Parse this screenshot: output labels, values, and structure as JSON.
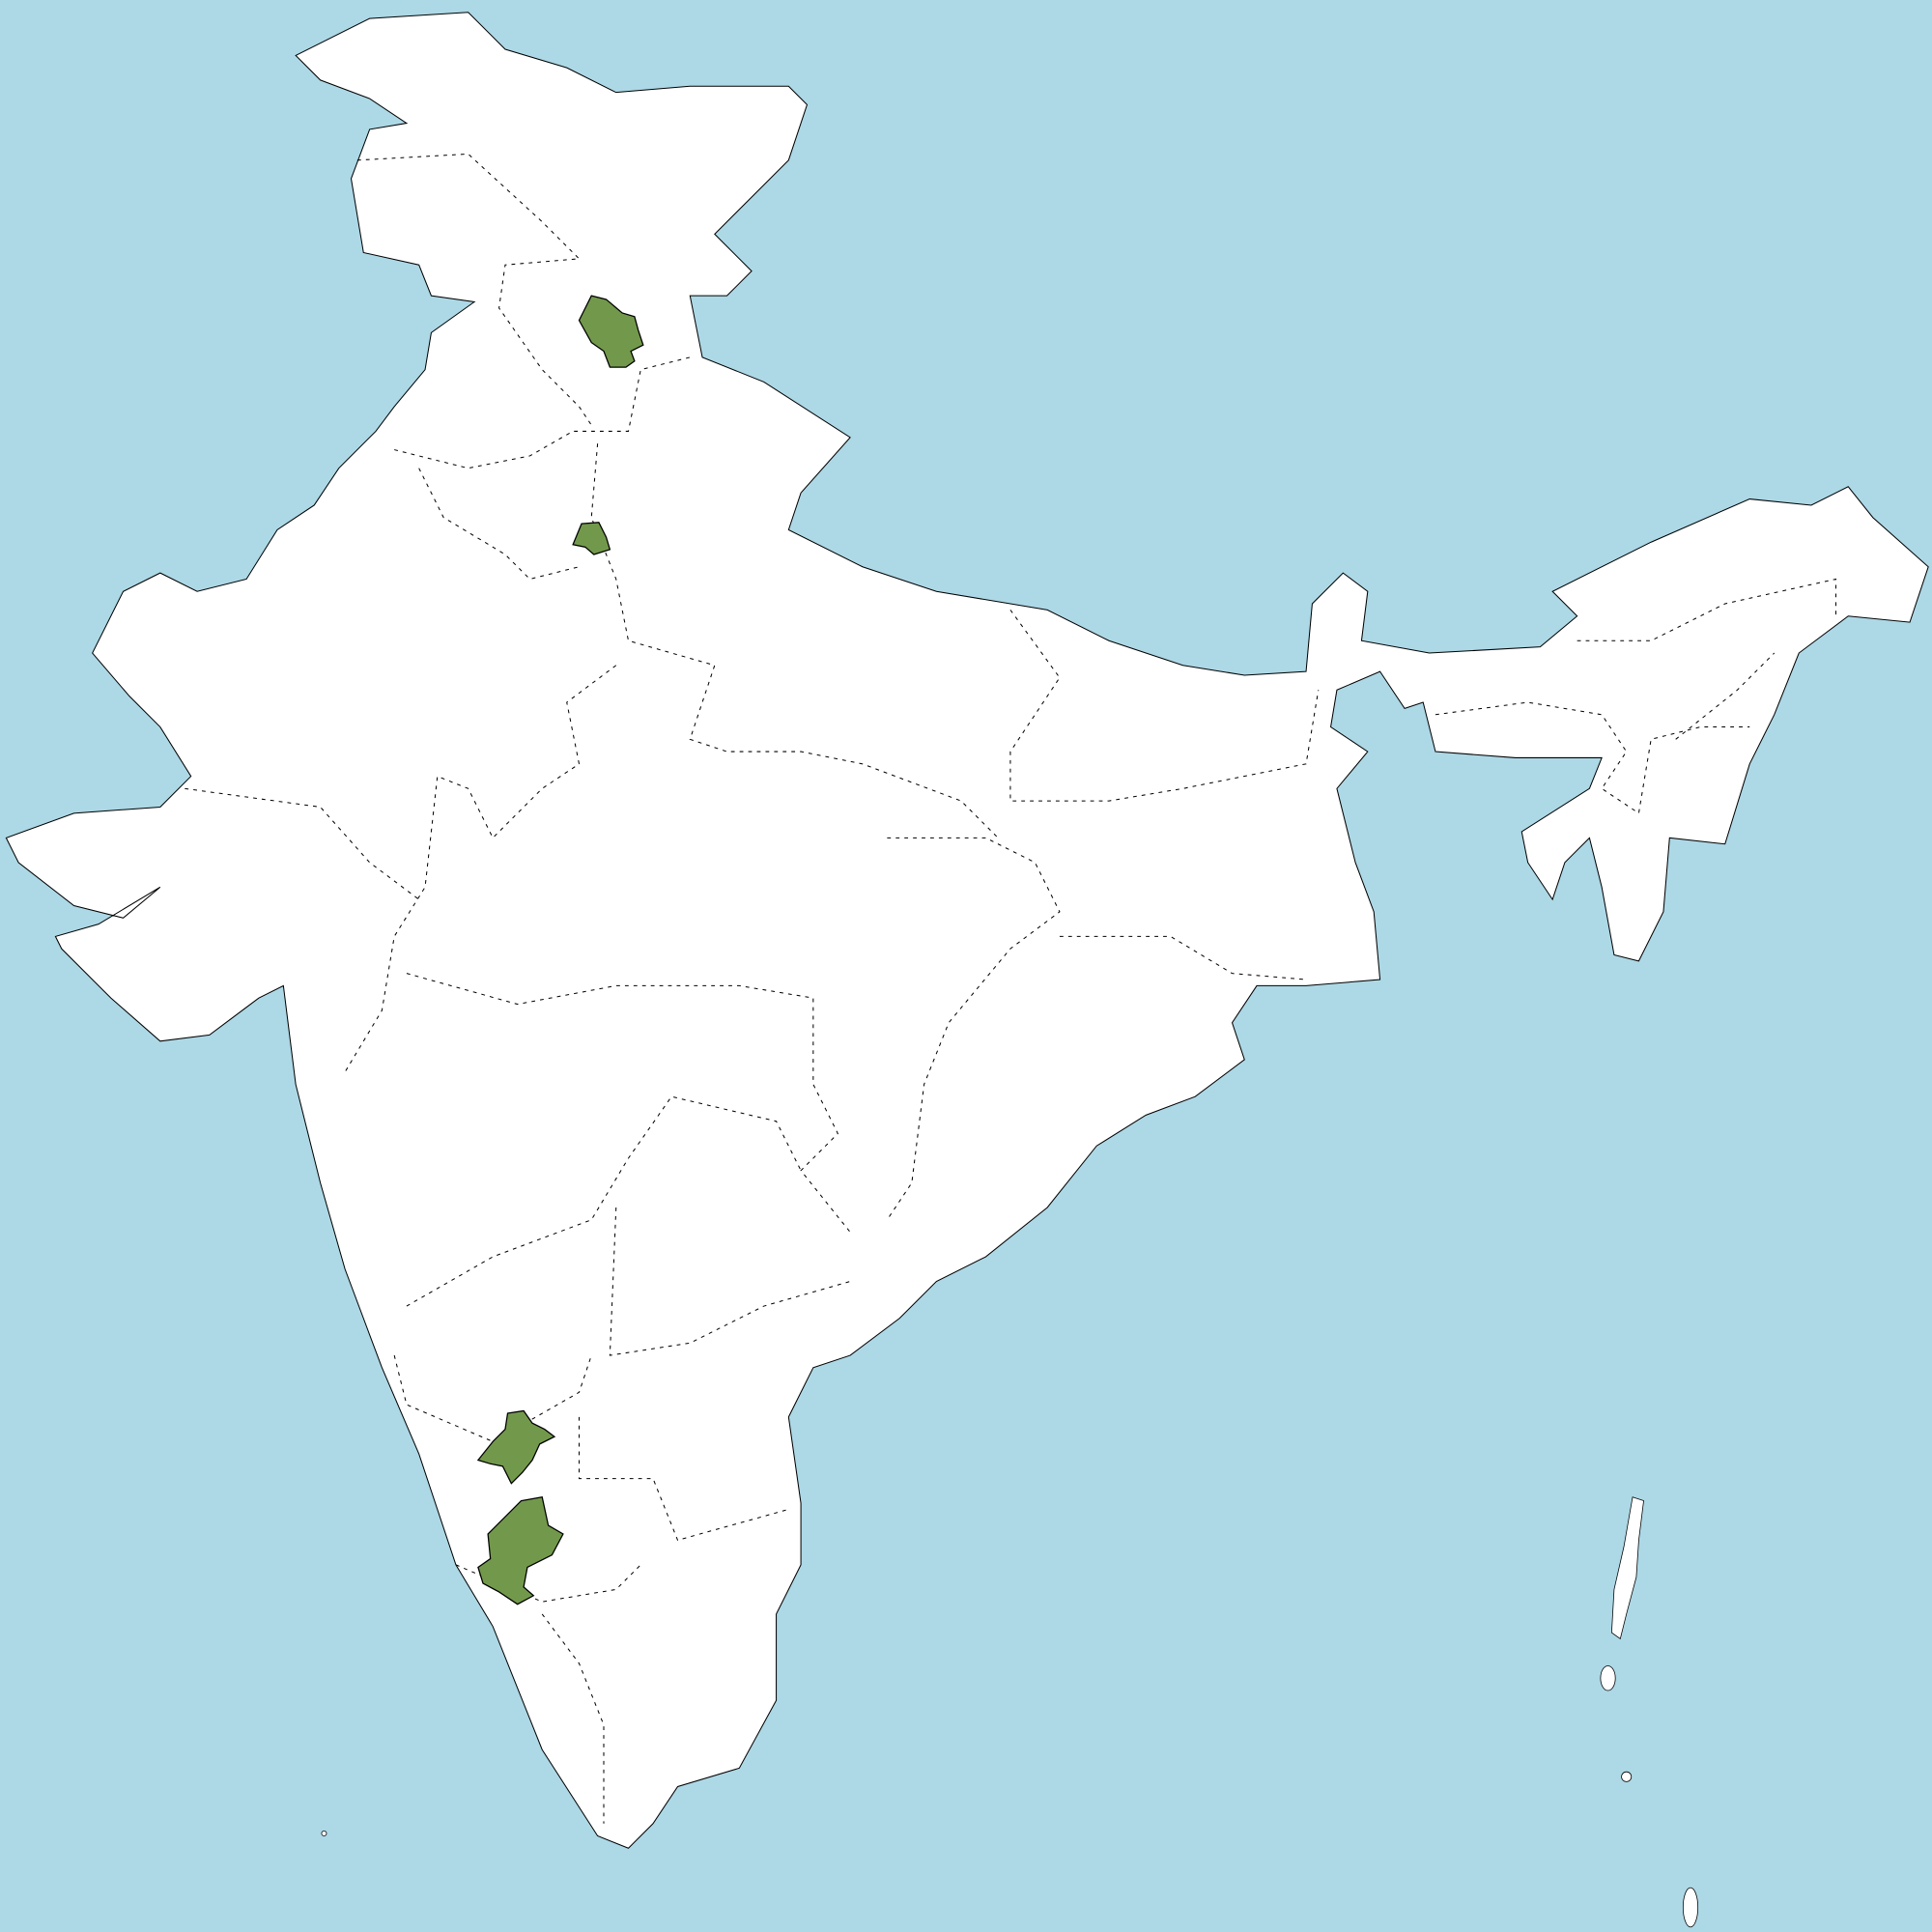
{
  "map": {
    "colors": {
      "ocean": "#add8e6",
      "land": "#ffffff",
      "border": "#000000",
      "highlight": "#72994b"
    },
    "highlighted_regions": [
      "district-north-1",
      "district-north-2",
      "district-south-1",
      "district-south-2"
    ]
  }
}
